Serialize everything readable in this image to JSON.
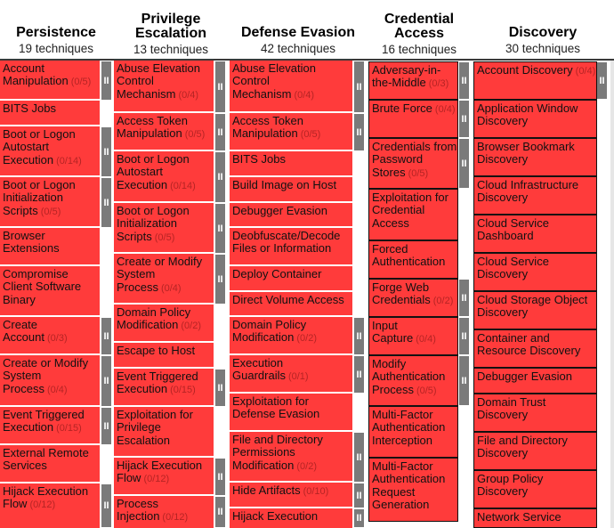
{
  "columns": [
    {
      "title": "Persistence",
      "count": "19 techniques"
    },
    {
      "title": "Privilege Escalation",
      "count": "13 techniques"
    },
    {
      "title": "Defense Evasion",
      "count": "42 techniques"
    },
    {
      "title": "Credential Access",
      "count": "16 techniques"
    },
    {
      "title": "Discovery",
      "count": "30 techniques"
    }
  ],
  "handle_glyph": "II",
  "persistence": [
    {
      "name": "Account Manipulation",
      "sub": "(0/5)"
    },
    {
      "name": "BITS Jobs",
      "sub": ""
    },
    {
      "name": "Boot or Logon Autostart Execution",
      "sub": "(0/14)"
    },
    {
      "name": "Boot or Logon Initialization Scripts",
      "sub": "(0/5)"
    },
    {
      "name": "Browser Extensions",
      "sub": ""
    },
    {
      "name": "Compromise Client Software Binary",
      "sub": ""
    },
    {
      "name": "Create Account",
      "sub": "(0/3)"
    },
    {
      "name": "Create or Modify System Process",
      "sub": "(0/4)"
    },
    {
      "name": "Event Triggered Execution",
      "sub": "(0/15)"
    },
    {
      "name": "External Remote Services",
      "sub": ""
    },
    {
      "name": "Hijack Execution Flow",
      "sub": "(0/12)"
    }
  ],
  "privesc": [
    {
      "name": "Abuse Elevation Control Mechanism",
      "sub": "(0/4)"
    },
    {
      "name": "Access Token Manipulation",
      "sub": "(0/5)"
    },
    {
      "name": "Boot or Logon Autostart Execution",
      "sub": "(0/14)"
    },
    {
      "name": "Boot or Logon Initialization Scripts",
      "sub": "(0/5)"
    },
    {
      "name": "Create or Modify System Process",
      "sub": "(0/4)"
    },
    {
      "name": "Domain Policy Modification",
      "sub": "(0/2)"
    },
    {
      "name": "Escape to Host",
      "sub": ""
    },
    {
      "name": "Event Triggered Execution",
      "sub": "(0/15)"
    },
    {
      "name": "Exploitation for Privilege Escalation",
      "sub": ""
    },
    {
      "name": "Hijack Execution Flow",
      "sub": "(0/12)"
    },
    {
      "name": "Process Injection",
      "sub": "(0/12)"
    }
  ],
  "defense": [
    {
      "name": "Abuse Elevation Control Mechanism",
      "sub": "(0/4)"
    },
    {
      "name": "Access Token Manipulation",
      "sub": "(0/5)"
    },
    {
      "name": "BITS Jobs",
      "sub": ""
    },
    {
      "name": "Build Image on Host",
      "sub": ""
    },
    {
      "name": "Debugger Evasion",
      "sub": ""
    },
    {
      "name": "Deobfuscate/Decode Files or Information",
      "sub": ""
    },
    {
      "name": "Deploy Container",
      "sub": ""
    },
    {
      "name": "Direct Volume Access",
      "sub": ""
    },
    {
      "name": "Domain Policy Modification",
      "sub": "(0/2)"
    },
    {
      "name": "Execution Guardrails",
      "sub": "(0/1)"
    },
    {
      "name": "Exploitation for Defense Evasion",
      "sub": ""
    },
    {
      "name": "File and Directory Permissions Modification",
      "sub": "(0/2)"
    },
    {
      "name": "Hide Artifacts",
      "sub": "(0/10)"
    },
    {
      "name": "Hijack Execution",
      "sub": ""
    }
  ],
  "credential": [
    {
      "name": "Adversary-in-the-Middle",
      "sub": "(0/3)"
    },
    {
      "name": "Brute Force",
      "sub": "(0/4)"
    },
    {
      "name": "Credentials from Password Stores",
      "sub": "(0/5)"
    },
    {
      "name": "Exploitation for Credential Access",
      "sub": ""
    },
    {
      "name": "Forced Authentication",
      "sub": ""
    },
    {
      "name": "Forge Web Credentials",
      "sub": "(0/2)"
    },
    {
      "name": "Input Capture",
      "sub": "(0/4)"
    },
    {
      "name": "Modify Authentication Process",
      "sub": "(0/5)"
    },
    {
      "name": "Multi-Factor Authentication Interception",
      "sub": ""
    },
    {
      "name": "Multi-Factor Authentication Request Generation",
      "sub": ""
    }
  ],
  "discovery": [
    {
      "name": "Account Discovery",
      "sub": "(0/4)"
    },
    {
      "name": "Application Window Discovery",
      "sub": ""
    },
    {
      "name": "Browser Bookmark Discovery",
      "sub": ""
    },
    {
      "name": "Cloud Infrastructure Discovery",
      "sub": ""
    },
    {
      "name": "Cloud Service Dashboard",
      "sub": ""
    },
    {
      "name": "Cloud Service Discovery",
      "sub": ""
    },
    {
      "name": "Cloud Storage Object Discovery",
      "sub": ""
    },
    {
      "name": "Container and Resource Discovery",
      "sub": ""
    },
    {
      "name": "Debugger Evasion",
      "sub": ""
    },
    {
      "name": "Domain Trust Discovery",
      "sub": ""
    },
    {
      "name": "File and Directory Discovery",
      "sub": ""
    },
    {
      "name": "Group Policy Discovery",
      "sub": ""
    },
    {
      "name": "Network Service",
      "sub": ""
    }
  ]
}
